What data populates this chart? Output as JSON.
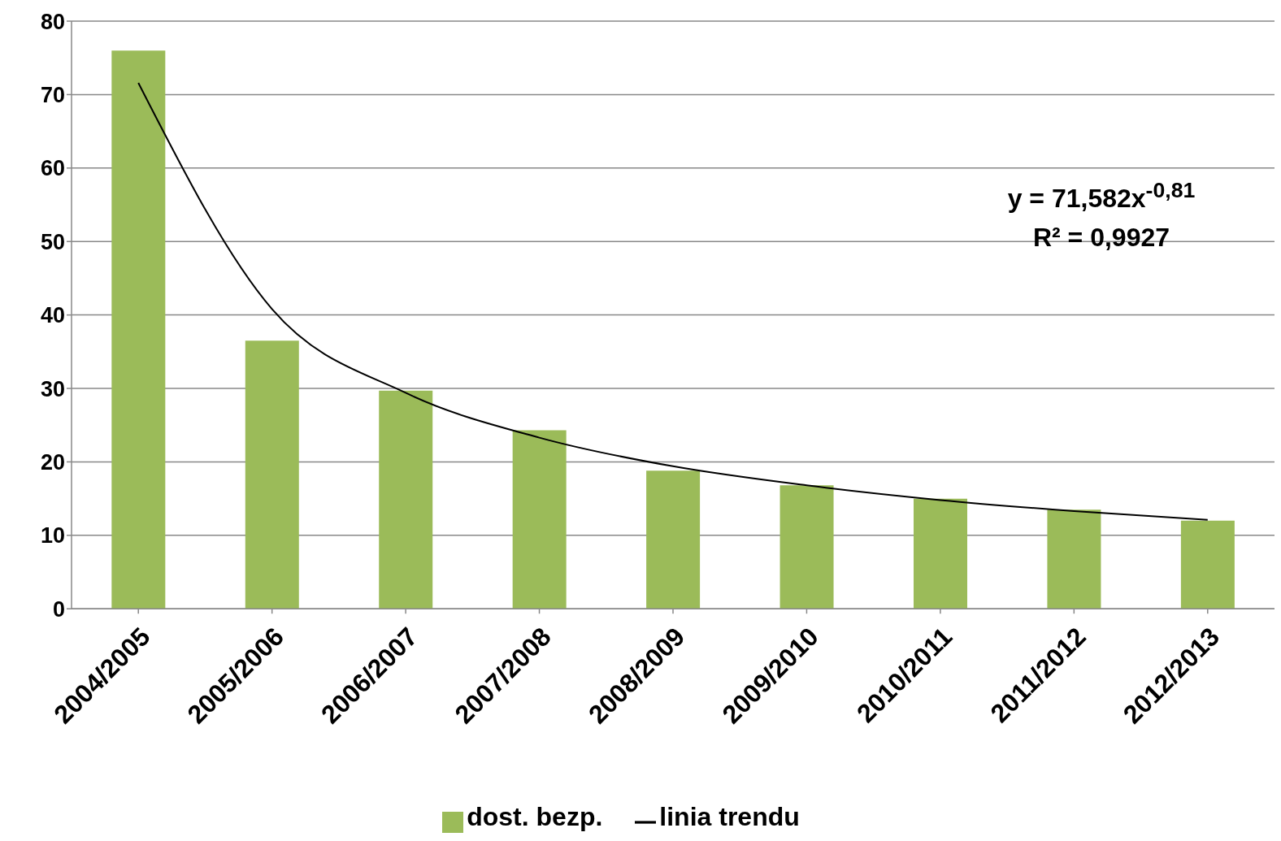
{
  "chart_data": {
    "type": "bar",
    "categories": [
      "2004/2005",
      "2005/2006",
      "2006/2007",
      "2007/2008",
      "2008/2009",
      "2009/2010",
      "2010/2011",
      "2011/2012",
      "2012/2013"
    ],
    "series": [
      {
        "name": "dost. bezp.",
        "color": "#9bbb59",
        "values": [
          76,
          36.5,
          29.7,
          24.3,
          18.8,
          16.8,
          15,
          13.5,
          12
        ]
      },
      {
        "name": "linia trendu",
        "type": "line",
        "color": "#000000",
        "values": [
          71.6,
          40.8,
          29.4,
          23.3,
          19.4,
          16.8,
          14.8,
          13.3,
          12.1
        ]
      }
    ],
    "ylim": [
      0,
      80
    ],
    "yticks": [
      0,
      10,
      20,
      30,
      40,
      50,
      60,
      70,
      80
    ],
    "grid": "y",
    "legend": "bottom",
    "marker": "none",
    "annotations": [
      "y = 71,582x$^{-0,81}$",
      "R² = 0,9927"
    ]
  }
}
